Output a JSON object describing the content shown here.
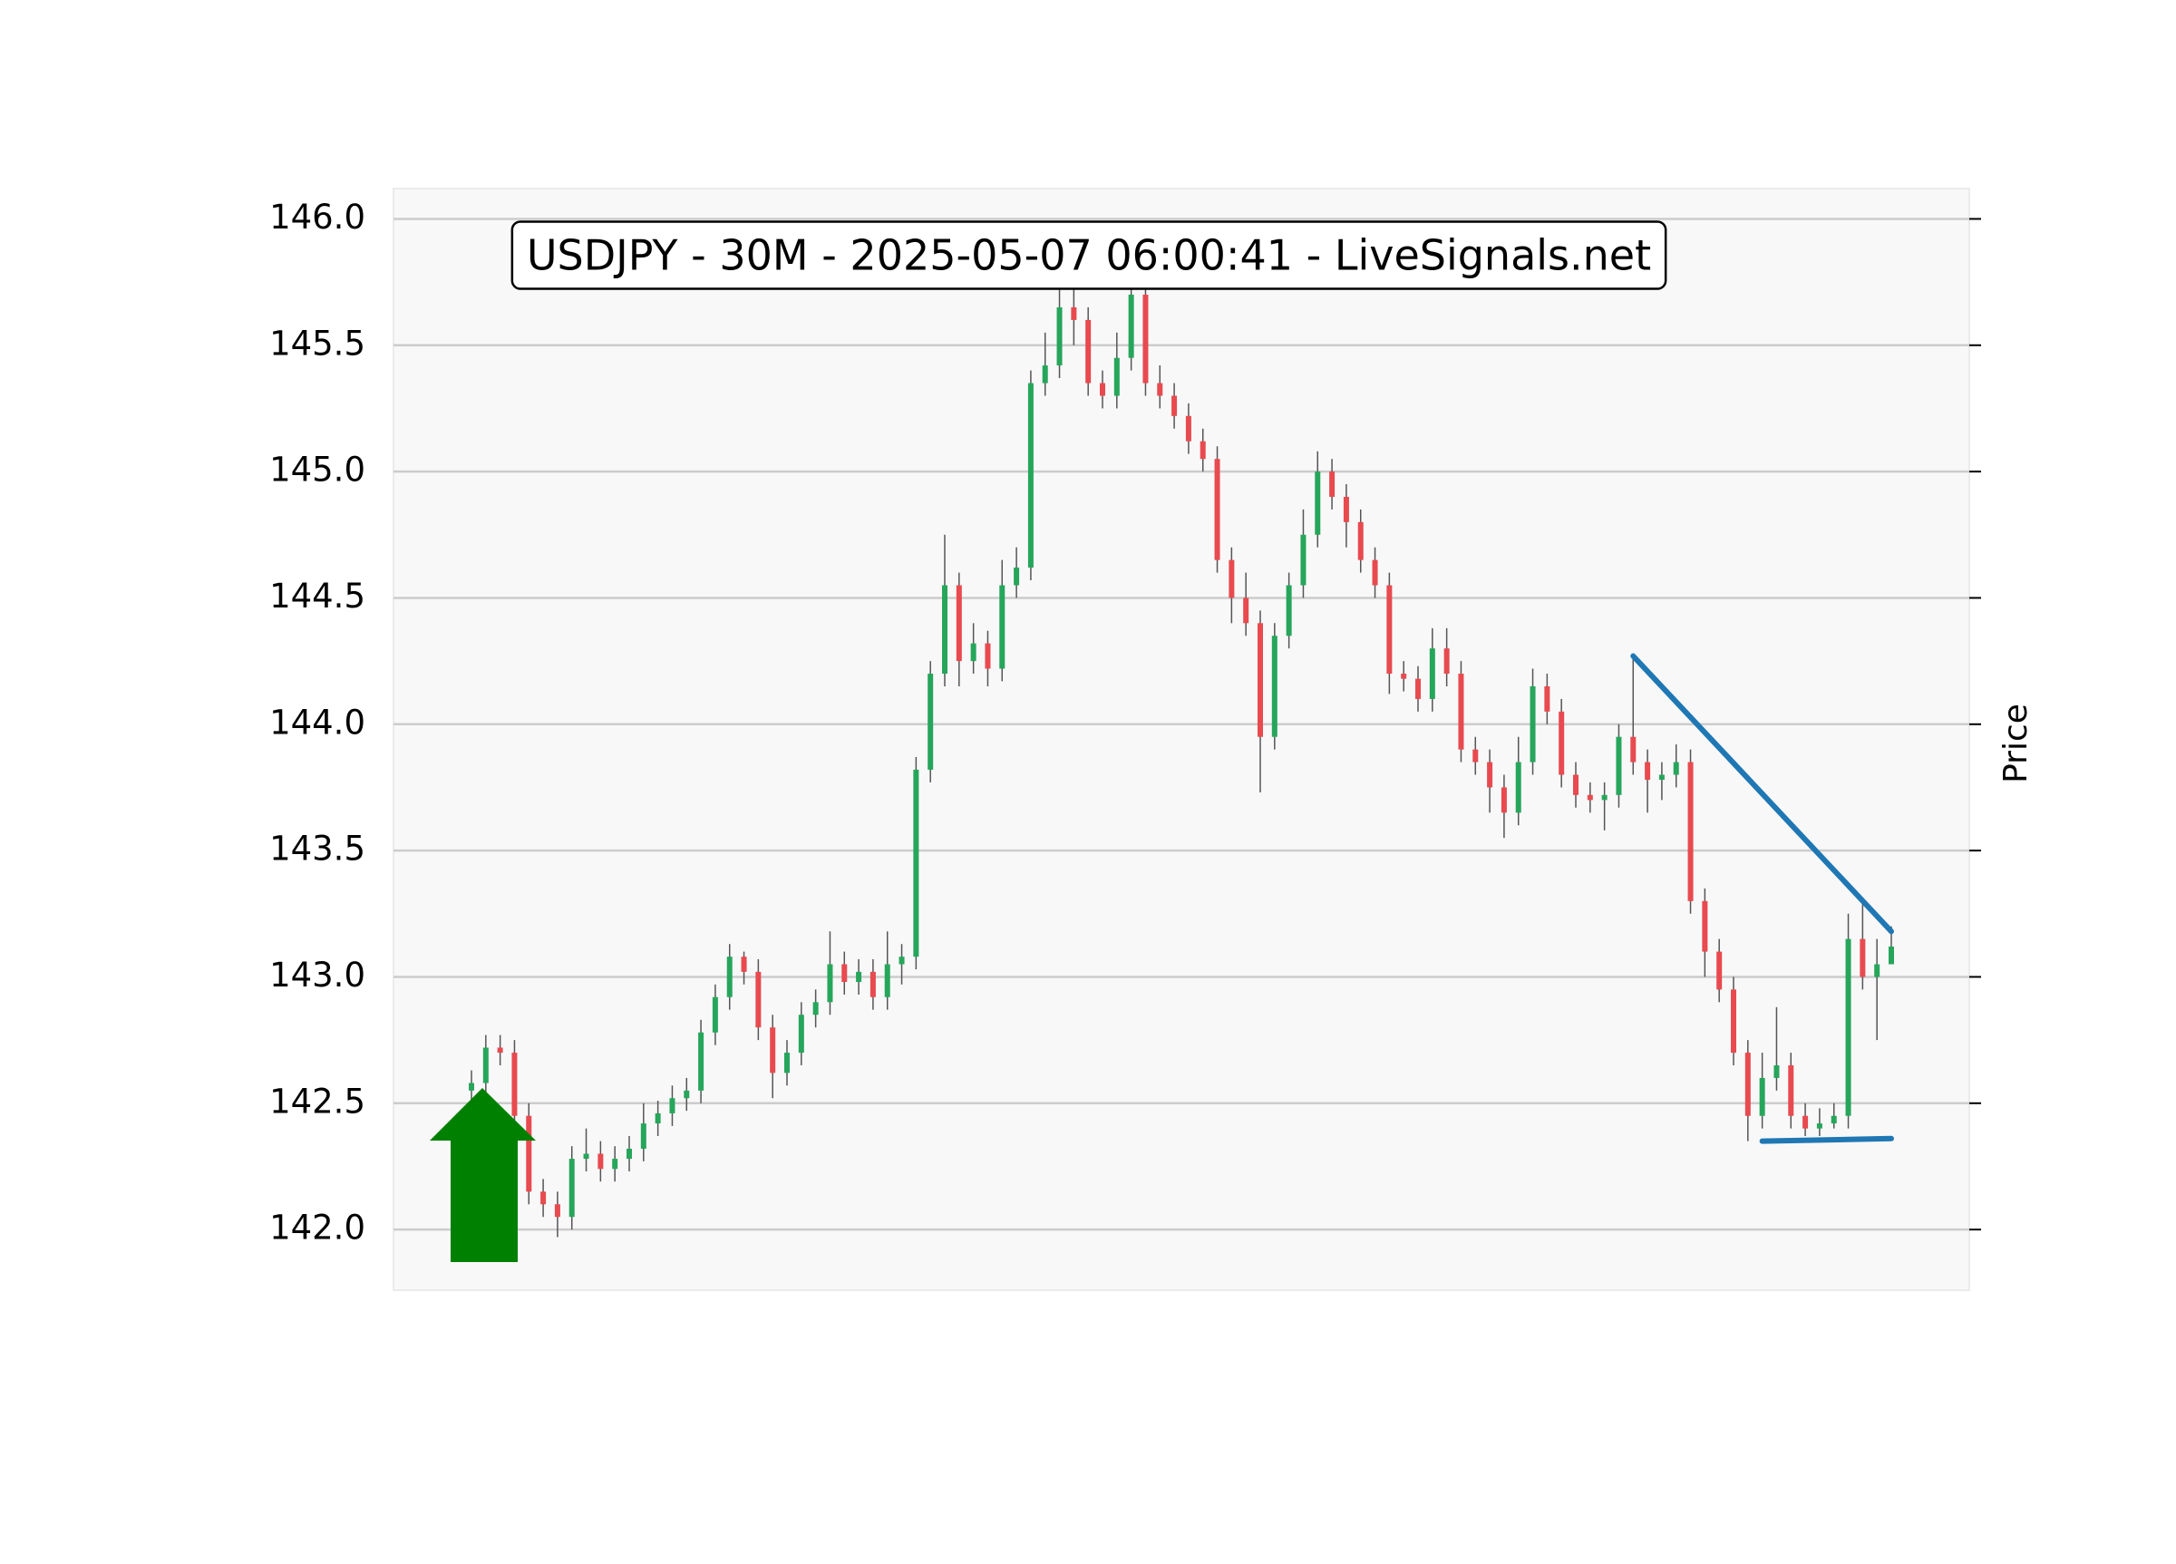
{
  "chart_data": {
    "type": "candlestick",
    "title": "USDJPY - 30M - 2025-05-07 06:00:41 - LiveSignals.net",
    "y_label": "Price",
    "ylim": [
      141.76,
      146.12
    ],
    "yticks": [
      {
        "value": 142,
        "label": "142.0"
      },
      142.5,
      {
        "value": 143,
        "label": "143.0"
      },
      143.5,
      {
        "value": 144,
        "label": "144.0"
      },
      144.5,
      {
        "value": 145,
        "label": "145.0"
      },
      145.5,
      {
        "value": 146,
        "label": "146.0"
      }
    ],
    "grid": true,
    "up_color": "#26a65b",
    "down_color": "#e84a4f",
    "wick_color": "#555555",
    "open": [
      142.55,
      142.58,
      142.72,
      142.7,
      142.45,
      142.15,
      142.1,
      142.05,
      142.28,
      142.3,
      142.24,
      142.28,
      142.32,
      142.42,
      142.46,
      142.52,
      142.55,
      142.78,
      142.92,
      143.08,
      143.02,
      142.8,
      142.62,
      142.7,
      142.85,
      142.9,
      143.05,
      142.98,
      143.02,
      142.92,
      143.05,
      143.08,
      143.82,
      144.2,
      144.55,
      144.25,
      144.32,
      144.22,
      144.55,
      144.62,
      145.35,
      145.42,
      145.65,
      145.6,
      145.35,
      145.3,
      145.45,
      145.7,
      145.35,
      145.3,
      145.22,
      145.12,
      145.05,
      144.65,
      144.5,
      144.4,
      143.95,
      144.35,
      144.55,
      144.75,
      145.0,
      144.9,
      144.8,
      144.65,
      144.55,
      144.2,
      144.18,
      144.1,
      144.3,
      144.2,
      143.9,
      143.85,
      143.75,
      143.65,
      143.85,
      144.15,
      144.05,
      143.8,
      143.72,
      143.7,
      143.72,
      143.95,
      143.85,
      143.78,
      143.8,
      143.85,
      143.3,
      143.1,
      142.95,
      142.7,
      142.45,
      142.6,
      142.65,
      142.45,
      142.4,
      142.42,
      142.45,
      143.15,
      143.0,
      143.05
    ],
    "high": [
      142.63,
      142.77,
      142.77,
      142.75,
      142.5,
      142.2,
      142.15,
      142.33,
      142.4,
      142.35,
      142.33,
      142.37,
      142.5,
      142.51,
      142.57,
      142.6,
      142.83,
      142.97,
      143.13,
      143.1,
      143.07,
      142.85,
      142.75,
      142.9,
      142.95,
      143.18,
      143.1,
      143.07,
      143.07,
      143.18,
      143.13,
      143.87,
      144.25,
      144.75,
      144.6,
      144.4,
      144.37,
      144.65,
      144.7,
      145.4,
      145.55,
      145.72,
      145.72,
      145.65,
      145.4,
      145.55,
      145.75,
      145.75,
      145.42,
      145.35,
      145.27,
      145.17,
      145.1,
      144.7,
      144.6,
      144.45,
      144.4,
      144.6,
      144.85,
      145.08,
      145.05,
      144.95,
      144.85,
      144.7,
      144.6,
      144.25,
      144.23,
      144.38,
      144.38,
      144.25,
      143.95,
      143.9,
      143.8,
      143.95,
      144.22,
      144.2,
      144.1,
      143.85,
      143.77,
      143.77,
      144.0,
      144.27,
      143.9,
      143.85,
      143.92,
      143.9,
      143.35,
      143.15,
      143.0,
      142.75,
      142.7,
      142.88,
      142.7,
      142.5,
      142.48,
      142.5,
      143.25,
      143.3,
      143.15,
      143.2
    ],
    "low": [
      142.5,
      142.53,
      142.65,
      142.4,
      142.1,
      142.05,
      141.97,
      142.0,
      142.23,
      142.19,
      142.19,
      142.23,
      142.27,
      142.37,
      142.41,
      142.47,
      142.5,
      142.73,
      142.87,
      142.97,
      142.75,
      142.52,
      142.57,
      142.65,
      142.8,
      142.85,
      142.93,
      142.93,
      142.87,
      142.87,
      142.97,
      143.03,
      143.77,
      144.15,
      144.15,
      144.2,
      144.15,
      144.17,
      144.5,
      144.57,
      145.3,
      145.37,
      145.5,
      145.3,
      145.25,
      145.25,
      145.4,
      145.3,
      145.25,
      145.17,
      145.07,
      145.0,
      144.6,
      144.4,
      144.35,
      143.73,
      143.9,
      144.3,
      144.5,
      144.7,
      144.85,
      144.7,
      144.6,
      144.5,
      144.12,
      144.13,
      144.05,
      144.05,
      144.15,
      143.85,
      143.8,
      143.65,
      143.55,
      143.6,
      143.8,
      144.0,
      143.75,
      143.67,
      143.65,
      143.58,
      143.67,
      143.8,
      143.65,
      143.7,
      143.75,
      143.25,
      143.0,
      142.9,
      142.65,
      142.35,
      142.4,
      142.55,
      142.4,
      142.37,
      142.37,
      142.4,
      142.4,
      142.95,
      142.75,
      143.05
    ],
    "close": [
      142.58,
      142.72,
      142.7,
      142.45,
      142.15,
      142.1,
      142.05,
      142.28,
      142.3,
      142.24,
      142.28,
      142.32,
      142.42,
      142.46,
      142.52,
      142.55,
      142.78,
      142.92,
      143.08,
      143.02,
      142.8,
      142.62,
      142.7,
      142.85,
      142.9,
      143.05,
      142.98,
      143.02,
      142.92,
      143.05,
      143.08,
      143.82,
      144.2,
      144.55,
      144.25,
      144.32,
      144.22,
      144.55,
      144.62,
      145.35,
      145.42,
      145.65,
      145.6,
      145.35,
      145.3,
      145.45,
      145.7,
      145.35,
      145.3,
      145.22,
      145.12,
      145.05,
      144.65,
      144.5,
      144.4,
      143.95,
      144.35,
      144.55,
      144.75,
      145.0,
      144.9,
      144.8,
      144.65,
      144.55,
      144.2,
      144.18,
      144.1,
      144.3,
      144.2,
      143.9,
      143.85,
      143.75,
      143.65,
      143.85,
      144.15,
      144.05,
      143.8,
      143.72,
      143.7,
      143.72,
      143.95,
      143.85,
      143.78,
      143.8,
      143.85,
      143.3,
      143.1,
      142.95,
      142.7,
      142.45,
      142.6,
      142.65,
      142.45,
      142.4,
      142.42,
      142.45,
      143.15,
      143.0,
      143.05,
      143.12
    ],
    "trendlines": [
      {
        "x": [
          81,
          99
        ],
        "y": [
          144.27,
          143.18
        ],
        "color": "#1f77b4"
      },
      {
        "x": [
          90,
          99
        ],
        "y": [
          142.35,
          142.36
        ],
        "color": "#1f77b4"
      }
    ]
  }
}
